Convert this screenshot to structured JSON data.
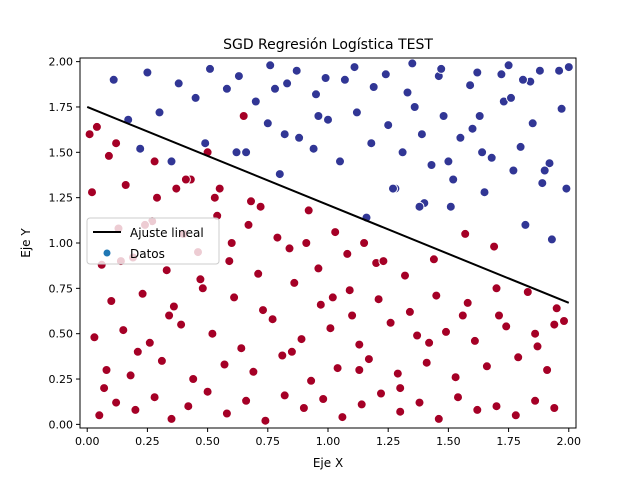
{
  "chart_data": {
    "type": "scatter",
    "title": "SGD Regresión Logística TEST",
    "xlabel": "Eje X",
    "ylabel": "Eje Y",
    "xlim": [
      -0.03,
      2.03
    ],
    "ylim": [
      -0.02,
      2.02
    ],
    "x_ticks": [
      "0.00",
      "0.25",
      "0.50",
      "0.75",
      "1.00",
      "1.25",
      "1.50",
      "1.75",
      "2.00"
    ],
    "y_ticks": [
      "0.00",
      "0.25",
      "0.50",
      "0.75",
      "1.00",
      "1.25",
      "1.50",
      "1.75",
      "2.00"
    ],
    "grid": false,
    "legend_position": "center-left",
    "legend": [
      "Ajuste lineal",
      "Datos"
    ],
    "fit_line": {
      "name": "Ajuste lineal",
      "x": [
        0.0,
        2.0
      ],
      "y": [
        1.75,
        0.67
      ],
      "color": "#000000"
    },
    "scatter": {
      "name": "Datos",
      "legend_color": "#1f77b4",
      "class_colors": [
        "#a50026",
        "#313695"
      ],
      "x": [
        0.05,
        0.12,
        0.2,
        0.28,
        0.35,
        0.42,
        0.5,
        0.58,
        0.66,
        0.74,
        0.82,
        0.9,
        0.98,
        1.06,
        1.14,
        1.22,
        1.3,
        1.38,
        1.46,
        1.54,
        1.62,
        1.7,
        1.78,
        1.86,
        1.94,
        0.08,
        0.18,
        0.31,
        0.44,
        0.57,
        0.69,
        0.81,
        0.93,
        1.04,
        1.17,
        1.29,
        1.41,
        1.53,
        1.66,
        1.79,
        1.91,
        0.03,
        0.15,
        0.26,
        0.39,
        0.52,
        0.64,
        0.77,
        0.89,
        1.01,
        1.13,
        1.26,
        1.37,
        1.49,
        1.61,
        1.74,
        1.87,
        1.98,
        0.1,
        0.23,
        0.36,
        0.48,
        0.61,
        0.73,
        0.86,
        0.97,
        1.09,
        1.21,
        1.34,
        1.45,
        1.58,
        1.71,
        1.83,
        1.95,
        0.06,
        0.19,
        0.33,
        0.46,
        0.59,
        0.71,
        0.84,
        0.96,
        1.08,
        1.2,
        1.32,
        1.44,
        1.57,
        1.69,
        1.82,
        1.93,
        0.13,
        0.27,
        0.4,
        0.54,
        0.67,
        0.79,
        0.92,
        1.03,
        1.16,
        1.28,
        1.4,
        1.52,
        1.65,
        1.77,
        1.89,
        0.02,
        0.16,
        0.29,
        0.43,
        0.55,
        0.68,
        0.8,
        0.94,
        1.05,
        1.18,
        1.31,
        1.43,
        1.55,
        1.68,
        1.8,
        1.92,
        0.09,
        0.22,
        0.35,
        0.49,
        0.62,
        0.75,
        0.88,
        1.0,
        1.12,
        1.25,
        1.36,
        1.48,
        1.6,
        1.73,
        1.85,
        1.97,
        0.04,
        0.17,
        0.3,
        0.45,
        0.58,
        0.7,
        0.83,
        0.95,
        1.07,
        1.19,
        1.33,
        1.46,
        1.59,
        1.72,
        1.84,
        1.96,
        0.11,
        0.25,
        0.38,
        0.51,
        0.63,
        0.76,
        0.87,
        0.99,
        1.11,
        1.24,
        1.35,
        1.47,
        1.62,
        1.75,
        1.88,
        2.0,
        0.07,
        0.21,
        0.34,
        0.47,
        0.6,
        0.72,
        0.85,
        1.02,
        1.15,
        1.27,
        1.39,
        1.51,
        1.64,
        1.76,
        1.9,
        0.14,
        0.24,
        0.37,
        0.5,
        0.65,
        0.78,
        0.91,
        1.1,
        1.23,
        1.38,
        1.5,
        1.63,
        1.81,
        1.94,
        0.01,
        0.12,
        0.28,
        0.41,
        0.53,
        0.66,
        0.82,
        0.96,
        1.13,
        1.3,
        1.42,
        1.56,
        1.7,
        1.86,
        1.99
      ],
      "y": [
        0.05,
        0.12,
        0.08,
        0.15,
        0.03,
        0.1,
        0.18,
        0.06,
        0.13,
        0.02,
        0.16,
        0.09,
        0.14,
        0.04,
        0.11,
        0.17,
        0.07,
        0.12,
        0.03,
        0.15,
        0.08,
        0.1,
        0.05,
        0.13,
        0.09,
        0.3,
        0.27,
        0.35,
        0.25,
        0.33,
        0.29,
        0.38,
        0.24,
        0.31,
        0.36,
        0.28,
        0.34,
        0.26,
        0.32,
        0.37,
        0.3,
        0.48,
        0.52,
        0.45,
        0.55,
        0.5,
        0.42,
        0.58,
        0.47,
        0.53,
        0.44,
        0.56,
        0.49,
        0.51,
        0.46,
        0.54,
        0.43,
        0.57,
        0.68,
        0.72,
        0.65,
        0.75,
        0.7,
        0.63,
        0.78,
        0.66,
        0.74,
        0.69,
        0.62,
        0.71,
        0.67,
        0.6,
        0.73,
        0.64,
        0.88,
        0.92,
        0.85,
        0.95,
        0.9,
        0.83,
        0.97,
        0.86,
        0.94,
        0.89,
        0.82,
        0.91,
        1.05,
        0.98,
        1.1,
        1.02,
        1.08,
        1.12,
        1.05,
        1.15,
        1.1,
        1.03,
        1.18,
        1.06,
        1.14,
        1.3,
        1.22,
        1.35,
        1.28,
        1.4,
        1.33,
        1.28,
        1.32,
        1.25,
        1.35,
        1.3,
        1.23,
        1.38,
        1.52,
        1.45,
        1.55,
        1.5,
        1.43,
        1.58,
        1.47,
        1.53,
        1.44,
        1.48,
        1.52,
        1.45,
        1.55,
        1.5,
        1.66,
        1.58,
        1.68,
        1.72,
        1.65,
        1.75,
        1.7,
        1.63,
        1.78,
        1.66,
        1.74,
        1.64,
        1.68,
        1.72,
        1.8,
        1.85,
        1.78,
        1.88,
        1.82,
        1.9,
        1.86,
        1.83,
        1.92,
        1.87,
        1.93,
        1.89,
        1.95,
        1.9,
        1.94,
        1.88,
        1.96,
        1.92,
        1.98,
        1.95,
        1.91,
        1.97,
        1.93,
        1.99,
        1.96,
        1.94,
        1.98,
        1.95,
        1.97,
        0.2,
        0.4,
        0.6,
        0.8,
        1.0,
        1.2,
        0.4,
        0.7,
        1.0,
        1.3,
        1.6,
        1.2,
        1.5,
        1.8,
        1.4,
        0.9,
        1.1,
        1.3,
        1.5,
        1.7,
        1.85,
        1.0,
        0.6,
        0.9,
        1.2,
        1.45,
        1.7,
        1.9,
        0.55,
        1.6,
        1.55,
        1.45,
        1.35,
        1.25,
        1.5,
        1.6,
        1.7,
        0.3,
        0.2,
        0.45,
        0.6,
        0.75,
        0.5,
        1.3
      ],
      "labels": [
        0,
        0,
        0,
        0,
        0,
        0,
        0,
        0,
        0,
        0,
        0,
        0,
        0,
        0,
        0,
        0,
        0,
        0,
        0,
        0,
        0,
        0,
        0,
        0,
        0,
        0,
        0,
        0,
        0,
        0,
        0,
        0,
        0,
        0,
        0,
        0,
        0,
        0,
        0,
        0,
        0,
        0,
        0,
        0,
        0,
        0,
        0,
        0,
        0,
        0,
        0,
        0,
        0,
        0,
        0,
        0,
        0,
        0,
        0,
        0,
        0,
        0,
        0,
        0,
        0,
        0,
        0,
        0,
        0,
        0,
        0,
        0,
        0,
        0,
        0,
        0,
        0,
        0,
        0,
        0,
        0,
        0,
        0,
        0,
        0,
        0,
        0,
        0,
        1,
        1,
        0,
        0,
        0,
        0,
        0,
        0,
        0,
        0,
        1,
        1,
        1,
        1,
        1,
        1,
        1,
        0,
        0,
        0,
        0,
        0,
        0,
        1,
        1,
        1,
        1,
        1,
        1,
        1,
        1,
        1,
        1,
        0,
        1,
        1,
        1,
        1,
        1,
        1,
        1,
        1,
        1,
        1,
        1,
        1,
        1,
        1,
        1,
        0,
        1,
        1,
        1,
        1,
        1,
        1,
        1,
        1,
        1,
        1,
        1,
        1,
        1,
        1,
        1,
        1,
        1,
        1,
        1,
        1,
        1,
        1,
        1,
        1,
        1,
        1,
        1,
        1,
        1,
        1,
        1,
        0,
        0,
        0,
        0,
        0,
        0,
        0,
        0,
        0,
        1,
        1,
        1,
        1,
        1,
        1,
        0,
        0,
        0,
        0,
        0,
        1,
        0,
        0,
        0,
        1,
        1,
        1,
        1,
        0,
        0,
        0,
        0,
        0,
        0,
        1,
        1,
        1,
        0,
        0,
        0,
        0,
        0,
        0,
        1
      ]
    }
  }
}
